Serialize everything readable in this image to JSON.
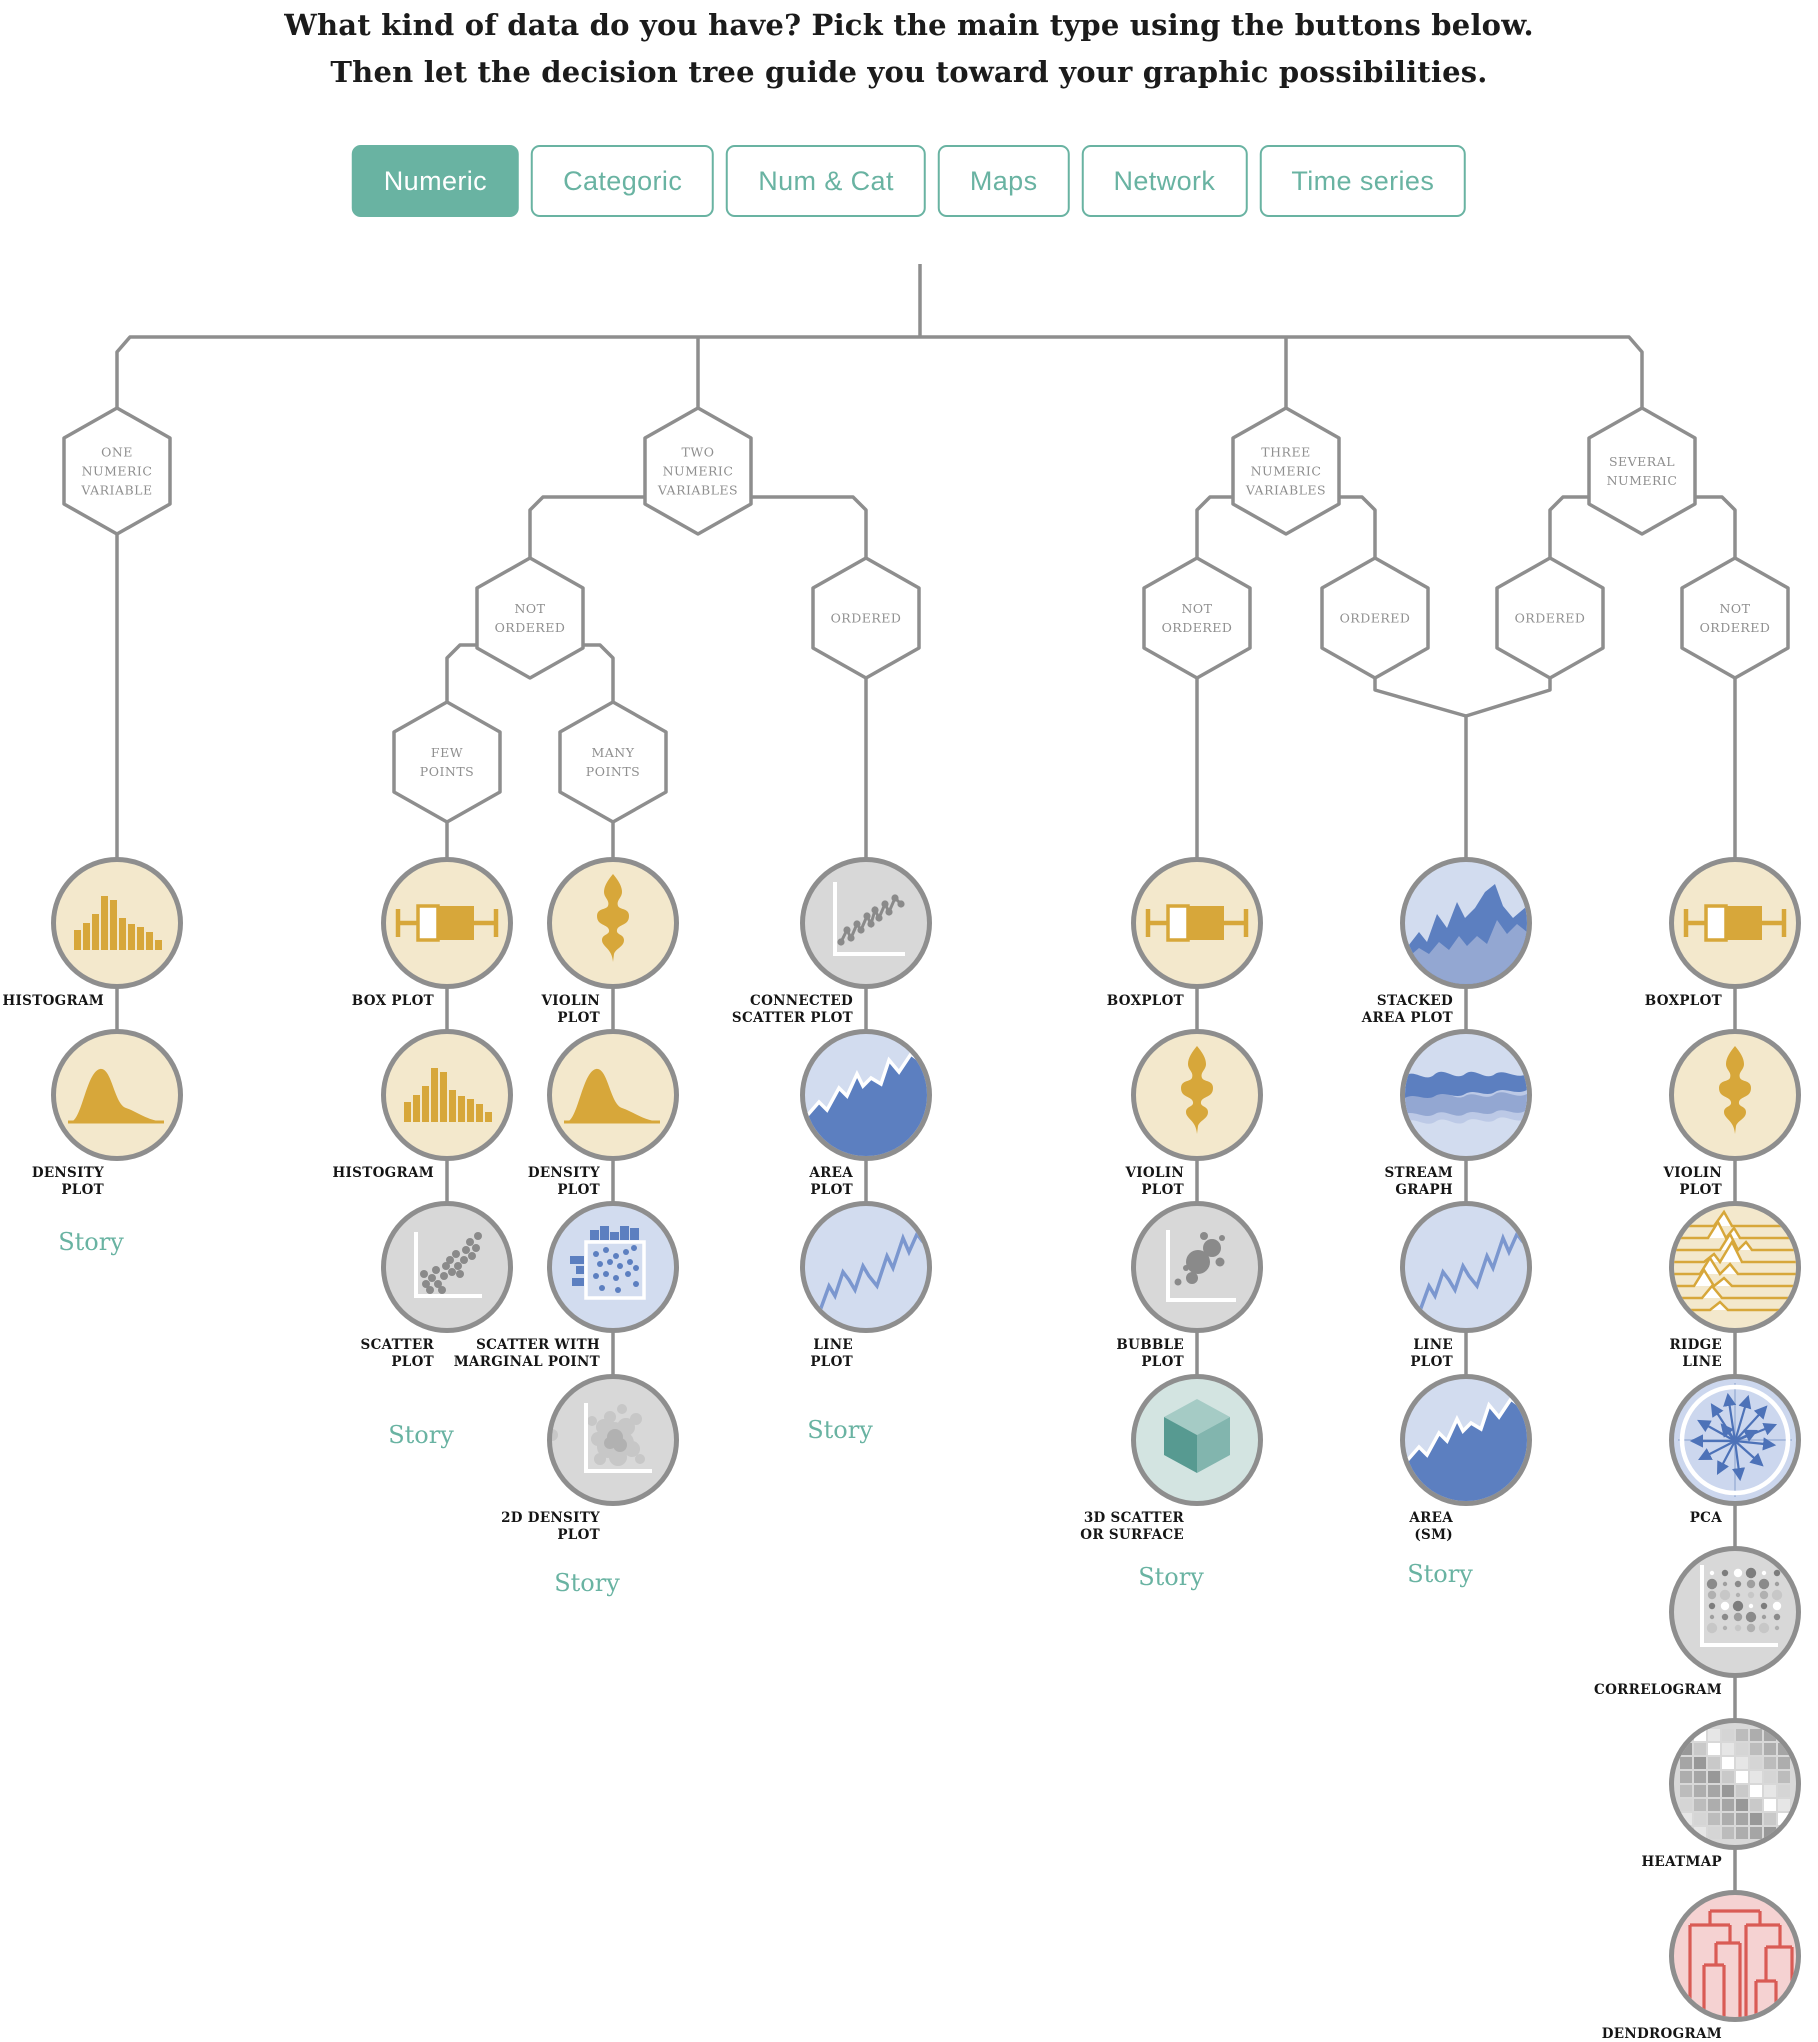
{
  "header": {
    "line1": "What kind of data do you have? Pick the main type using the buttons below.",
    "line2": "Then let the decision tree guide you toward your graphic possibilities."
  },
  "buttons": [
    {
      "label": "Numeric",
      "active": true
    },
    {
      "label": "Categoric",
      "active": false
    },
    {
      "label": "Num & Cat",
      "active": false
    },
    {
      "label": "Maps",
      "active": false
    },
    {
      "label": "Network",
      "active": false
    },
    {
      "label": "Time series",
      "active": false
    }
  ],
  "colors": {
    "accent": "#69b3a2",
    "line_gray": "#8e8e8e",
    "yellow_bg": "#f3e8cc",
    "yellow_icon": "#d7a73a",
    "gray_bg": "#d8d8d8",
    "gray_icon": "#8a8a8a",
    "blue_bg": "#d2dcef",
    "blue_dark": "#5c7fc0",
    "blue_mid": "#93a7d2",
    "teal_bg": "#d3e4e1",
    "red_bg": "#f5d2d2",
    "red_icon": "#d95b55"
  },
  "hexagons": [
    {
      "id": "one-numeric-variable",
      "label": "ONE\nNUMERIC\nVARIABLE"
    },
    {
      "id": "two-numeric-variables",
      "label": "TWO\nNUMERIC\nVARIABLES"
    },
    {
      "id": "three-numeric-variables",
      "label": "THREE\nNUMERIC\nVARIABLES"
    },
    {
      "id": "several-numeric",
      "label": "SEVERAL\nNUMERIC"
    },
    {
      "id": "not-ordered-two-numeric",
      "label": "NOT\nORDERED"
    },
    {
      "id": "ordered-two-numeric",
      "label": "ORDERED"
    },
    {
      "id": "not-ordered-three-numeric",
      "label": "NOT\nORDERED"
    },
    {
      "id": "ordered-three-numeric",
      "label": "ORDERED"
    },
    {
      "id": "ordered-several-numeric",
      "label": "ORDERED"
    },
    {
      "id": "not-ordered-several-numeric",
      "label": "NOT\nORDERED"
    },
    {
      "id": "few-points",
      "label": "FEW\nPOINTS"
    },
    {
      "id": "many-points",
      "label": "MANY\nPOINTS"
    }
  ],
  "columns": [
    {
      "nodes": [
        {
          "id": "histogram",
          "label": "HISTOGRAM"
        },
        {
          "id": "density-plot",
          "label": "DENSITY\nPLOT"
        }
      ],
      "story": "Story"
    },
    {
      "nodes": [
        {
          "id": "box-plot",
          "label": "BOX PLOT"
        },
        {
          "id": "histogram",
          "label": "HISTOGRAM"
        },
        {
          "id": "scatter-plot",
          "label": "SCATTER\nPLOT"
        }
      ],
      "story": "Story"
    },
    {
      "nodes": [
        {
          "id": "violin-plot",
          "label": "VIOLIN\nPLOT"
        },
        {
          "id": "density-plot",
          "label": "DENSITY\nPLOT"
        },
        {
          "id": "scatter-with-marginal-point",
          "label": "SCATTER WITH\nMARGINAL POINT"
        },
        {
          "id": "2d-density-plot",
          "label": "2D DENSITY\nPLOT"
        }
      ],
      "story": "Story"
    },
    {
      "nodes": [
        {
          "id": "connected-scatter-plot",
          "label": "CONNECTED\nSCATTER PLOT"
        },
        {
          "id": "area-plot",
          "label": "AREA\nPLOT"
        },
        {
          "id": "line-plot",
          "label": "LINE\nPLOT"
        }
      ],
      "story": "Story"
    },
    {
      "nodes": [
        {
          "id": "boxplot",
          "label": "BOXPLOT"
        },
        {
          "id": "violin-plot",
          "label": "VIOLIN\nPLOT"
        },
        {
          "id": "bubble-plot",
          "label": "BUBBLE\nPLOT"
        },
        {
          "id": "3d-scatter-or-surface",
          "label": "3D SCATTER\nOR SURFACE"
        }
      ],
      "story": "Story"
    },
    {
      "nodes": [
        {
          "id": "stacked-area-plot",
          "label": "STACKED\nAREA PLOT"
        },
        {
          "id": "stream-graph",
          "label": "STREAM\nGRAPH"
        },
        {
          "id": "line-plot",
          "label": "LINE\nPLOT"
        },
        {
          "id": "area-sm",
          "label": "AREA\n(SM)"
        }
      ],
      "story": "Story"
    },
    {
      "nodes": [
        {
          "id": "boxplot",
          "label": "BOXPLOT"
        },
        {
          "id": "violin-plot",
          "label": "VIOLIN\nPLOT"
        },
        {
          "id": "ridge-line",
          "label": "RIDGE\nLINE"
        },
        {
          "id": "pca",
          "label": "PCA"
        },
        {
          "id": "correlogram",
          "label": "CORRELOGRAM"
        },
        {
          "id": "heatmap",
          "label": "HEATMAP"
        },
        {
          "id": "dendrogram",
          "label": "DENDROGRAM"
        }
      ]
    }
  ]
}
